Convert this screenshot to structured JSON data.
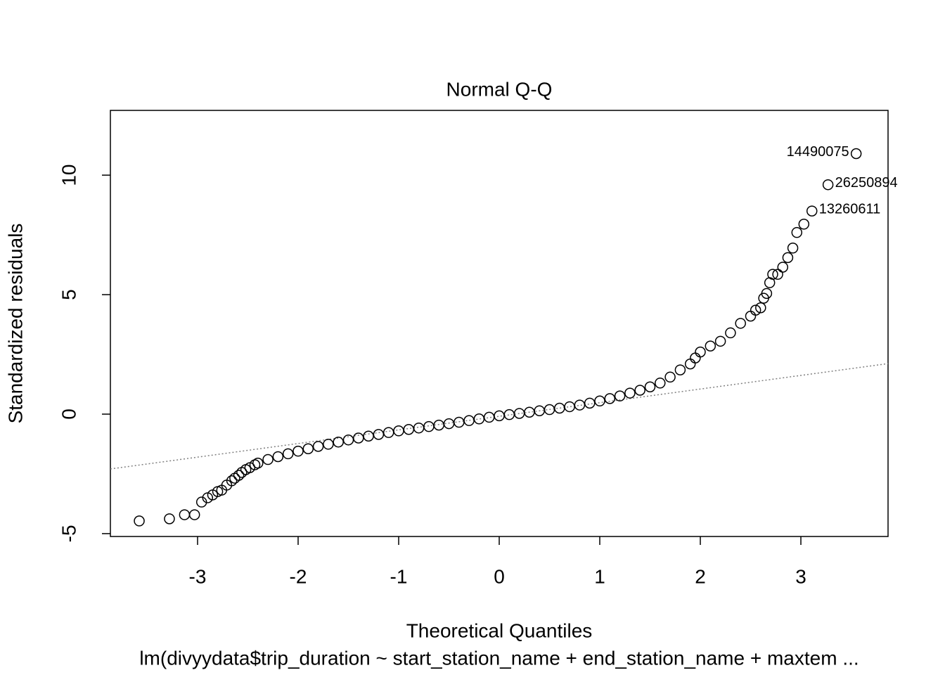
{
  "chart_data": {
    "type": "scatter",
    "title": "Normal Q-Q",
    "xlabel": "Theoretical Quantiles",
    "ylabel": "Standardized residuals",
    "caption": "lm(divyydata$trip_duration ~ start_station_name + end_station_name + maxtem ...",
    "xlim": [
      -3.867,
      3.867
    ],
    "ylim": [
      -5.12,
      12.71
    ],
    "xticks": [
      -3,
      -2,
      -1,
      0,
      1,
      2,
      3
    ],
    "yticks": [
      -5,
      0,
      5,
      10
    ],
    "color": "#000000",
    "x": [
      -3.58,
      -3.28,
      -3.13,
      -3.03,
      -2.96,
      -2.9,
      -2.85,
      -2.8,
      -2.76,
      -2.71,
      -2.66,
      -2.63,
      -2.59,
      -2.56,
      -2.52,
      -2.48,
      -2.43,
      -2.4,
      -2.3,
      -2.2,
      -2.1,
      -2.0,
      -1.9,
      -1.8,
      -1.7,
      -1.6,
      -1.5,
      -1.4,
      -1.3,
      -1.2,
      -1.1,
      -1.0,
      -0.9,
      -0.8,
      -0.7,
      -0.6,
      -0.5,
      -0.4,
      -0.3,
      -0.2,
      -0.1,
      0,
      0.1,
      0.2,
      0.3,
      0.4,
      0.5,
      0.6,
      0.7,
      0.8,
      0.9,
      1.0,
      1.1,
      1.2,
      1.3,
      1.4,
      1.5,
      1.6,
      1.7,
      1.8,
      1.9,
      1.95,
      2.0,
      2.1,
      2.2,
      2.3,
      2.4,
      2.5,
      2.55,
      2.6,
      2.63,
      2.66,
      2.69,
      2.72,
      2.77,
      2.82,
      2.87,
      2.92,
      2.96,
      3.03,
      3.11,
      3.27,
      3.55
    ],
    "values": [
      -4.47,
      -4.38,
      -4.21,
      -4.21,
      -3.68,
      -3.5,
      -3.38,
      -3.24,
      -3.18,
      -2.97,
      -2.79,
      -2.68,
      -2.56,
      -2.44,
      -2.32,
      -2.24,
      -2.12,
      -2.05,
      -1.9,
      -1.78,
      -1.66,
      -1.55,
      -1.45,
      -1.35,
      -1.26,
      -1.17,
      -1.08,
      -1.0,
      -0.92,
      -0.85,
      -0.77,
      -0.7,
      -0.64,
      -0.58,
      -0.52,
      -0.46,
      -0.4,
      -0.34,
      -0.27,
      -0.2,
      -0.13,
      -0.07,
      -0.02,
      0.03,
      0.08,
      0.14,
      0.19,
      0.25,
      0.31,
      0.38,
      0.46,
      0.55,
      0.65,
      0.76,
      0.88,
      1.0,
      1.14,
      1.3,
      1.55,
      1.85,
      2.1,
      2.35,
      2.6,
      2.85,
      3.05,
      3.4,
      3.8,
      4.1,
      4.35,
      4.45,
      4.85,
      5.05,
      5.5,
      5.85,
      5.85,
      6.15,
      6.55,
      6.95,
      7.6,
      7.95,
      8.5,
      9.6,
      10.9
    ],
    "point_labels": [
      null,
      null,
      null,
      null,
      null,
      null,
      null,
      null,
      null,
      null,
      null,
      null,
      null,
      null,
      null,
      null,
      null,
      null,
      null,
      null,
      null,
      null,
      null,
      null,
      null,
      null,
      null,
      null,
      null,
      null,
      null,
      null,
      null,
      null,
      null,
      null,
      null,
      null,
      null,
      null,
      null,
      null,
      null,
      null,
      null,
      null,
      null,
      null,
      null,
      null,
      null,
      null,
      null,
      null,
      null,
      null,
      null,
      null,
      null,
      null,
      null,
      null,
      null,
      null,
      null,
      null,
      null,
      null,
      null,
      null,
      null,
      null,
      null,
      null,
      null,
      null,
      null,
      null,
      null,
      null,
      "13260611",
      "26250894",
      "14490075"
    ],
    "reference_line": {
      "intercept": -0.09,
      "slope": 0.57,
      "color": "#808080"
    }
  }
}
